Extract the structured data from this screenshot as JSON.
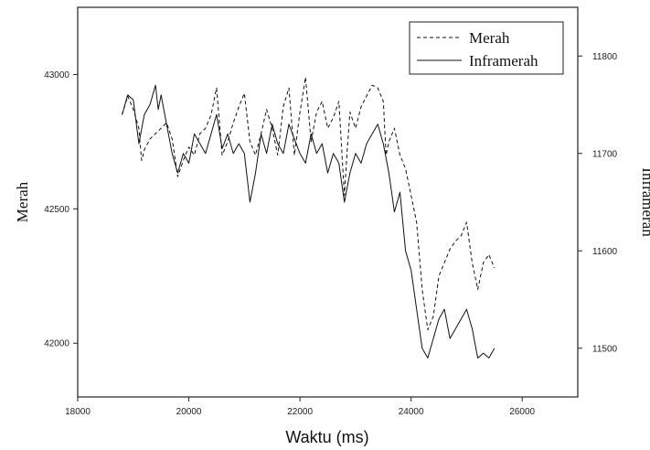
{
  "chart_data": {
    "type": "line",
    "xlabel": "Waktu (ms)",
    "ylabel_left": "Merah",
    "ylabel_right": "Inframerah",
    "xlim": [
      18000,
      27000
    ],
    "ylim_left": [
      41800,
      43250
    ],
    "ylim_right": [
      11450,
      11850
    ],
    "xticks": [
      18000,
      20000,
      22000,
      24000,
      26000
    ],
    "yticks_left": [
      42000,
      42500,
      43000
    ],
    "yticks_right": [
      11500,
      11600,
      11700,
      11800
    ],
    "legend_position": "top-right",
    "grid": false,
    "series": [
      {
        "name": "Merah",
        "axis": "left",
        "style": "dashed",
        "x": [
          18800,
          18900,
          19000,
          19100,
          19150,
          19200,
          19300,
          19400,
          19500,
          19600,
          19700,
          19800,
          19900,
          20000,
          20100,
          20200,
          20300,
          20400,
          20500,
          20600,
          20700,
          20800,
          20900,
          21000,
          21100,
          21200,
          21300,
          21400,
          21500,
          21600,
          21700,
          21800,
          21900,
          22000,
          22100,
          22200,
          22300,
          22400,
          22500,
          22600,
          22700,
          22800,
          22850,
          22900,
          23000,
          23100,
          23200,
          23300,
          23400,
          23500,
          23550,
          23600,
          23700,
          23800,
          23900,
          24000,
          24100,
          24200,
          24300,
          24400,
          24500,
          24600,
          24700,
          24800,
          24900,
          25000,
          25100,
          25200,
          25300,
          25400,
          25500
        ],
        "y": [
          42850,
          42920,
          42870,
          42800,
          42680,
          42720,
          42760,
          42780,
          42800,
          42820,
          42760,
          42620,
          42680,
          42730,
          42700,
          42780,
          42800,
          42850,
          42950,
          42700,
          42750,
          42820,
          42880,
          42930,
          42750,
          42700,
          42780,
          42870,
          42800,
          42700,
          42880,
          42950,
          42700,
          42860,
          42990,
          42750,
          42860,
          42900,
          42800,
          42840,
          42900,
          42550,
          42720,
          42860,
          42800,
          42880,
          42920,
          42960,
          42950,
          42900,
          42700,
          42750,
          42800,
          42700,
          42650,
          42550,
          42450,
          42200,
          42050,
          42100,
          42250,
          42300,
          42350,
          42380,
          42400,
          42450,
          42300,
          42200,
          42300,
          42330,
          42280
        ]
      },
      {
        "name": "Inframerah",
        "axis": "right",
        "style": "solid",
        "x": [
          18800,
          18900,
          19000,
          19100,
          19200,
          19300,
          19400,
          19450,
          19500,
          19600,
          19700,
          19800,
          19900,
          20000,
          20100,
          20200,
          20300,
          20400,
          20500,
          20600,
          20700,
          20800,
          20900,
          21000,
          21100,
          21200,
          21300,
          21400,
          21500,
          21600,
          21700,
          21800,
          21900,
          22000,
          22100,
          22200,
          22300,
          22400,
          22500,
          22600,
          22700,
          22800,
          22900,
          23000,
          23100,
          23200,
          23300,
          23400,
          23500,
          23600,
          23700,
          23800,
          23900,
          24000,
          24100,
          24200,
          24300,
          24400,
          24500,
          24600,
          24700,
          24800,
          24900,
          25000,
          25100,
          25200,
          25300,
          25400,
          25500
        ],
        "y": [
          11740,
          11760,
          11755,
          11710,
          11740,
          11750,
          11770,
          11745,
          11760,
          11730,
          11700,
          11680,
          11700,
          11690,
          11720,
          11710,
          11700,
          11720,
          11740,
          11705,
          11720,
          11700,
          11710,
          11700,
          11650,
          11680,
          11720,
          11700,
          11730,
          11710,
          11700,
          11730,
          11715,
          11700,
          11690,
          11720,
          11700,
          11710,
          11680,
          11700,
          11690,
          11650,
          11680,
          11700,
          11690,
          11710,
          11720,
          11730,
          11710,
          11680,
          11640,
          11660,
          11600,
          11580,
          11540,
          11500,
          11490,
          11510,
          11530,
          11540,
          11510,
          11520,
          11530,
          11540,
          11520,
          11490,
          11495,
          11490,
          11500
        ]
      }
    ]
  }
}
